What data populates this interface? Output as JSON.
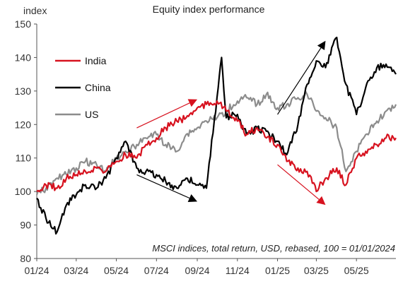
{
  "chart_data": {
    "type": "line",
    "title": "Equity index performance",
    "ylabel": "index",
    "xlabel": "",
    "note": "MSCI indices, total return, USD, rebased, 100 = 01/01/2024",
    "ylim": [
      80,
      150
    ],
    "yticks": [
      80,
      90,
      100,
      110,
      120,
      130,
      140,
      150
    ],
    "x_tick_labels": [
      "01/24",
      "03/24",
      "05/24",
      "07/24",
      "09/24",
      "11/24",
      "01/25",
      "03/25",
      "05/25"
    ],
    "x_tick_dates": [
      "2024-01-01",
      "2024-03-01",
      "2024-05-01",
      "2024-07-01",
      "2024-09-01",
      "2024-11-01",
      "2025-01-01",
      "2025-03-01",
      "2025-05-01"
    ],
    "xlim": [
      "2024-01-01",
      "2025-06-30"
    ],
    "legend_placement": "left",
    "series": [
      {
        "name": "India",
        "color": "#d7121f",
        "points": [
          [
            "2024-01-01",
            100
          ],
          [
            "2024-01-15",
            102
          ],
          [
            "2024-02-01",
            101
          ],
          [
            "2024-02-15",
            104
          ],
          [
            "2024-03-01",
            105
          ],
          [
            "2024-03-15",
            106
          ],
          [
            "2024-04-01",
            107
          ],
          [
            "2024-04-15",
            106
          ],
          [
            "2024-05-01",
            109
          ],
          [
            "2024-05-15",
            111
          ],
          [
            "2024-06-01",
            110
          ],
          [
            "2024-06-15",
            114
          ],
          [
            "2024-07-01",
            116
          ],
          [
            "2024-07-15",
            119
          ],
          [
            "2024-08-01",
            121
          ],
          [
            "2024-08-15",
            122
          ],
          [
            "2024-09-01",
            125
          ],
          [
            "2024-09-15",
            126
          ],
          [
            "2024-10-01",
            127
          ],
          [
            "2024-10-15",
            124
          ],
          [
            "2024-11-01",
            121
          ],
          [
            "2024-11-15",
            117
          ],
          [
            "2024-12-01",
            119
          ],
          [
            "2024-12-15",
            116
          ],
          [
            "2025-01-01",
            114
          ],
          [
            "2025-01-15",
            109
          ],
          [
            "2025-02-01",
            107
          ],
          [
            "2025-02-15",
            106
          ],
          [
            "2025-03-01",
            100
          ],
          [
            "2025-03-15",
            104
          ],
          [
            "2025-04-01",
            107
          ],
          [
            "2025-04-15",
            102
          ],
          [
            "2025-05-01",
            110
          ],
          [
            "2025-05-15",
            112
          ],
          [
            "2025-06-01",
            114
          ],
          [
            "2025-06-15",
            116
          ],
          [
            "2025-06-30",
            116
          ]
        ]
      },
      {
        "name": "China",
        "color": "#000000",
        "points": [
          [
            "2024-01-01",
            98
          ],
          [
            "2024-01-15",
            92
          ],
          [
            "2024-02-01",
            88
          ],
          [
            "2024-02-15",
            96
          ],
          [
            "2024-03-01",
            99
          ],
          [
            "2024-03-15",
            102
          ],
          [
            "2024-04-01",
            101
          ],
          [
            "2024-04-15",
            104
          ],
          [
            "2024-05-01",
            110
          ],
          [
            "2024-05-15",
            115
          ],
          [
            "2024-06-01",
            107
          ],
          [
            "2024-06-15",
            106
          ],
          [
            "2024-07-01",
            105
          ],
          [
            "2024-07-15",
            103
          ],
          [
            "2024-08-01",
            101
          ],
          [
            "2024-08-15",
            104
          ],
          [
            "2024-09-01",
            102
          ],
          [
            "2024-09-15",
            101
          ],
          [
            "2024-10-01",
            128
          ],
          [
            "2024-10-08",
            140
          ],
          [
            "2024-10-15",
            122
          ],
          [
            "2024-11-01",
            123
          ],
          [
            "2024-11-15",
            117
          ],
          [
            "2024-12-01",
            119
          ],
          [
            "2024-12-15",
            118
          ],
          [
            "2025-01-01",
            115
          ],
          [
            "2025-01-15",
            111
          ],
          [
            "2025-02-01",
            120
          ],
          [
            "2025-02-15",
            132
          ],
          [
            "2025-03-01",
            139
          ],
          [
            "2025-03-15",
            137
          ],
          [
            "2025-04-01",
            146
          ],
          [
            "2025-04-15",
            132
          ],
          [
            "2025-05-01",
            123
          ],
          [
            "2025-05-15",
            131
          ],
          [
            "2025-06-01",
            137
          ],
          [
            "2025-06-15",
            138
          ],
          [
            "2025-06-30",
            135
          ]
        ]
      },
      {
        "name": "US",
        "color": "#8c8c8c",
        "points": [
          [
            "2024-01-01",
            99
          ],
          [
            "2024-01-15",
            101
          ],
          [
            "2024-02-01",
            104
          ],
          [
            "2024-02-15",
            105
          ],
          [
            "2024-03-01",
            107
          ],
          [
            "2024-03-15",
            109
          ],
          [
            "2024-04-01",
            108
          ],
          [
            "2024-04-15",
            106
          ],
          [
            "2024-05-01",
            110
          ],
          [
            "2024-05-15",
            112
          ],
          [
            "2024-06-01",
            114
          ],
          [
            "2024-06-15",
            116
          ],
          [
            "2024-07-01",
            117
          ],
          [
            "2024-07-15",
            114
          ],
          [
            "2024-08-01",
            112
          ],
          [
            "2024-08-15",
            117
          ],
          [
            "2024-09-01",
            119
          ],
          [
            "2024-09-15",
            121
          ],
          [
            "2024-10-01",
            122
          ],
          [
            "2024-10-15",
            124
          ],
          [
            "2024-11-01",
            127
          ],
          [
            "2024-11-15",
            128
          ],
          [
            "2024-12-01",
            126
          ],
          [
            "2024-12-15",
            129
          ],
          [
            "2025-01-01",
            125
          ],
          [
            "2025-01-15",
            126
          ],
          [
            "2025-02-01",
            128
          ],
          [
            "2025-02-15",
            129
          ],
          [
            "2025-03-01",
            124
          ],
          [
            "2025-03-15",
            122
          ],
          [
            "2025-04-01",
            119
          ],
          [
            "2025-04-15",
            106
          ],
          [
            "2025-05-01",
            112
          ],
          [
            "2025-05-15",
            117
          ],
          [
            "2025-06-01",
            121
          ],
          [
            "2025-06-15",
            124
          ],
          [
            "2025-06-30",
            126
          ]
        ]
      }
    ],
    "arrows": [
      {
        "color": "#d7121f",
        "from": [
          "2024-06-01",
          119
        ],
        "to": [
          "2024-09-01",
          127.5
        ]
      },
      {
        "color": "#000000",
        "from": [
          "2024-06-01",
          105
        ],
        "to": [
          "2024-09-01",
          97
        ]
      },
      {
        "color": "#000000",
        "from": [
          "2025-01-01",
          123
        ],
        "to": [
          "2025-03-15",
          145
        ]
      },
      {
        "color": "#d7121f",
        "from": [
          "2025-01-01",
          108
        ],
        "to": [
          "2025-03-15",
          96
        ]
      }
    ]
  }
}
